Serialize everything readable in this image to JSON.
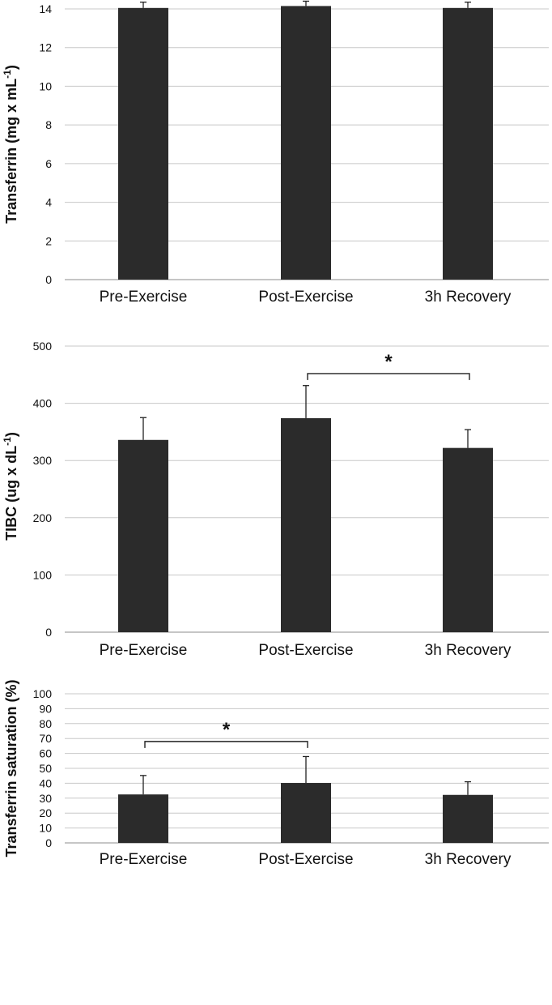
{
  "colors": {
    "bar": "#2b2b2b",
    "grid": "#c8c8c8",
    "axis": "#8c8c8c",
    "text": "#111111"
  },
  "chart_data": [
    {
      "type": "bar",
      "categories": [
        "Pre-Exercise",
        "Post-Exercise",
        "3h Recovery"
      ],
      "values": [
        14.05,
        14.15,
        14.05
      ],
      "error": [
        0.3,
        0.25,
        0.3
      ],
      "ylim": [
        0,
        14
      ],
      "yticks": [
        0,
        2,
        4,
        6,
        8,
        10,
        12,
        14
      ],
      "ylabel": "Transferrin  (mg x mL",
      "ylabel_sup": "-1",
      "ylabel_close": ")",
      "significance": []
    },
    {
      "type": "bar",
      "categories": [
        "Pre-Exercise",
        "Post-Exercise",
        "3h Recovery"
      ],
      "values": [
        336,
        374,
        322
      ],
      "error": [
        39,
        57,
        32
      ],
      "ylim": [
        0,
        500
      ],
      "yticks": [
        0,
        100,
        200,
        300,
        400,
        500
      ],
      "ylabel": "TIBC (ug x dL",
      "ylabel_sup": "-1",
      "ylabel_close": ")",
      "significance": [
        {
          "from": 1,
          "to": 2,
          "level": 452,
          "label": "*"
        }
      ]
    },
    {
      "type": "bar",
      "categories": [
        "Pre-Exercise",
        "Post-Exercise",
        "3h Recovery"
      ],
      "values": [
        32.5,
        40.2,
        32.2
      ],
      "error": [
        12.7,
        17.7,
        8.8
      ],
      "ylim": [
        0,
        100
      ],
      "yticks": [
        0,
        10,
        20,
        30,
        40,
        50,
        60,
        70,
        80,
        90,
        100
      ],
      "ylabel": "Transferrin saturation  (%)",
      "ylabel_sup": "",
      "ylabel_close": "",
      "significance": [
        {
          "from": 0,
          "to": 1,
          "level": 68,
          "label": "*"
        }
      ]
    }
  ]
}
